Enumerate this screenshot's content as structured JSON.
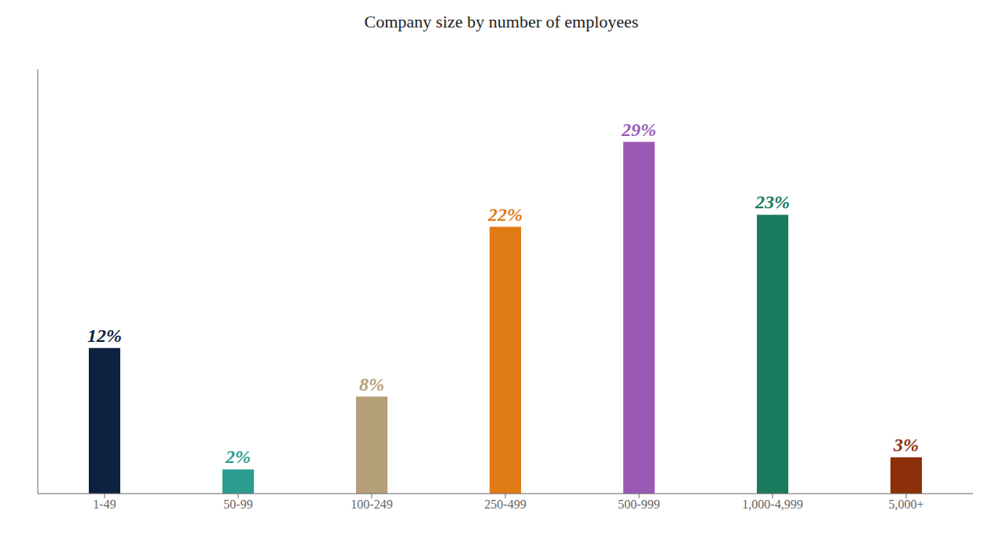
{
  "chart_data": {
    "type": "bar",
    "title": "Company size by number of employees",
    "categories": [
      "1-49",
      "50-99",
      "100-249",
      "250-499",
      "500-999",
      "1,000-4,999",
      "5,000+"
    ],
    "values": [
      12,
      2,
      8,
      22,
      29,
      23,
      3
    ],
    "value_labels": [
      "12%",
      "2%",
      "8%",
      "22%",
      "29%",
      "23%",
      "3%"
    ],
    "colors": [
      "#0d2240",
      "#2a9d8f",
      "#b5a07a",
      "#e07b16",
      "#9b59b6",
      "#1a7a5e",
      "#8b3008"
    ],
    "ylim": [
      0,
      35
    ],
    "yticks": [],
    "grid": false,
    "data_labels": true,
    "tick_labels": "x"
  }
}
